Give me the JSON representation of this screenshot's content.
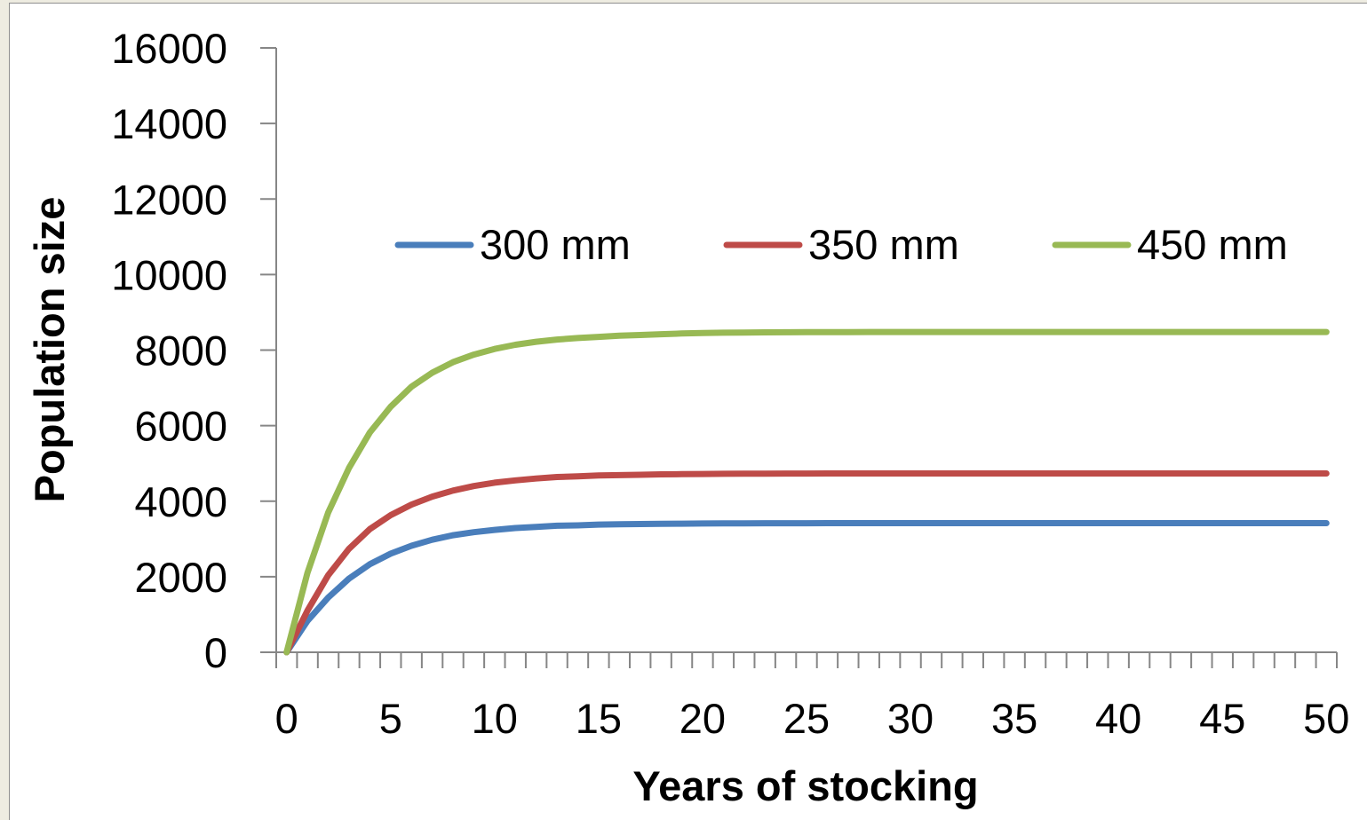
{
  "chart_data": {
    "type": "line",
    "title": "",
    "xlabel": "Years of stocking",
    "ylabel": "Population size",
    "xlim": [
      0,
      50
    ],
    "ylim": [
      0,
      16000
    ],
    "x_ticks": [
      "0",
      "5",
      "10",
      "15",
      "20",
      "25",
      "30",
      "35",
      "40",
      "45",
      "50"
    ],
    "y_ticks": [
      "0",
      "2000",
      "4000",
      "6000",
      "8000",
      "10000",
      "12000",
      "14000",
      "16000"
    ],
    "grid": false,
    "legend_position": "top-right",
    "x": [
      0,
      1,
      2,
      3,
      4,
      5,
      6,
      7,
      8,
      9,
      10,
      11,
      12,
      13,
      14,
      15,
      16,
      17,
      18,
      19,
      20,
      21,
      22,
      23,
      24,
      25,
      26,
      27,
      28,
      29,
      30,
      31,
      32,
      33,
      34,
      35,
      36,
      37,
      38,
      39,
      40,
      41,
      42,
      43,
      44,
      45,
      46,
      47,
      48,
      49,
      50
    ],
    "series": [
      {
        "name": "300 mm",
        "color": "#4a7ebb",
        "values": [
          0,
          830,
          1450,
          1950,
          2330,
          2610,
          2820,
          2980,
          3100,
          3180,
          3240,
          3290,
          3320,
          3350,
          3360,
          3380,
          3390,
          3395,
          3400,
          3405,
          3410,
          3412,
          3414,
          3415,
          3416,
          3417,
          3418,
          3418,
          3418,
          3418,
          3418,
          3418,
          3418,
          3418,
          3418,
          3418,
          3418,
          3418,
          3418,
          3418,
          3418,
          3418,
          3418,
          3418,
          3418,
          3418,
          3418,
          3418,
          3418,
          3418,
          3418
        ]
      },
      {
        "name": "350 mm",
        "color": "#be4b48",
        "values": [
          0,
          1100,
          2040,
          2740,
          3260,
          3630,
          3910,
          4120,
          4280,
          4400,
          4490,
          4550,
          4600,
          4640,
          4660,
          4680,
          4690,
          4700,
          4710,
          4715,
          4720,
          4725,
          4728,
          4730,
          4732,
          4733,
          4734,
          4735,
          4735,
          4735,
          4735,
          4735,
          4735,
          4735,
          4735,
          4735,
          4735,
          4735,
          4735,
          4735,
          4735,
          4735,
          4735,
          4735,
          4735,
          4735,
          4735,
          4735,
          4735,
          4735,
          4735
        ]
      },
      {
        "name": "450 mm",
        "color": "#98b954",
        "values": [
          0,
          2100,
          3700,
          4880,
          5820,
          6500,
          7030,
          7400,
          7680,
          7880,
          8030,
          8140,
          8220,
          8280,
          8320,
          8350,
          8380,
          8400,
          8420,
          8440,
          8450,
          8460,
          8465,
          8470,
          8472,
          8474,
          8476,
          8478,
          8480,
          8480,
          8480,
          8480,
          8480,
          8480,
          8480,
          8480,
          8480,
          8480,
          8480,
          8480,
          8480,
          8480,
          8480,
          8480,
          8480,
          8480,
          8480,
          8480,
          8480,
          8480,
          8480
        ]
      }
    ]
  }
}
